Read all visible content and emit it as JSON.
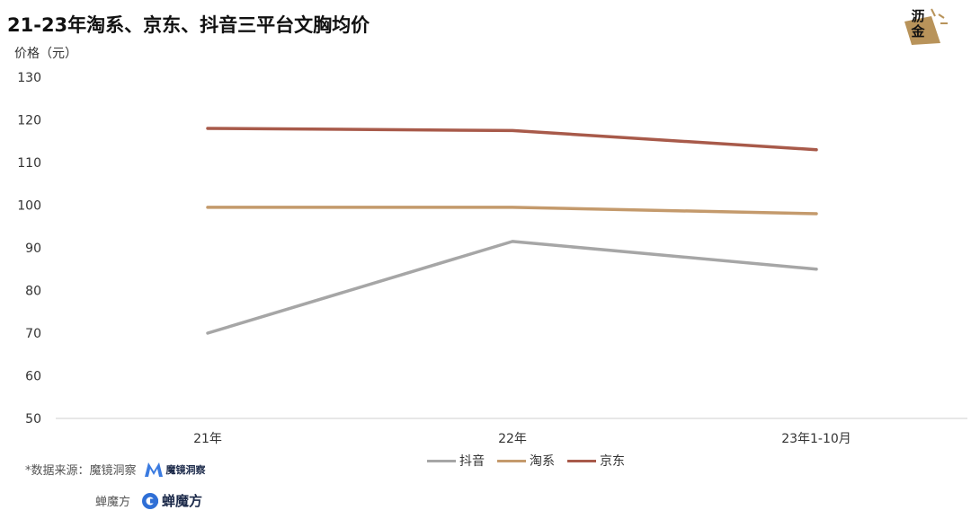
{
  "title": "21-23年淘系、京东、抖音三平台文胸均价",
  "logo": {
    "text": "沥金",
    "icon": "box-logo-icon",
    "color": "#b8935a"
  },
  "footer": {
    "source_label": "*数据来源：魔镜洞察",
    "source_brand": "魔镜洞察",
    "source_brand_icon": "m-logo-icon",
    "credit_label": "蝉魔方",
    "credit_brand": "蝉魔方",
    "credit_brand_icon": "c-logo-icon"
  },
  "chart_data": {
    "type": "line",
    "title": "21-23年淘系、京东、抖音三平台文胸均价",
    "ylabel": "价格（元）",
    "xlabel": "",
    "categories": [
      "21年",
      "22年",
      "23年1-10月"
    ],
    "ylim": [
      50,
      130
    ],
    "yticks": [
      50,
      60,
      70,
      80,
      90,
      100,
      110,
      120,
      130
    ],
    "grid": false,
    "legend_position": "bottom",
    "series": [
      {
        "name": "抖音",
        "color": "#a6a6a6",
        "values": [
          70,
          91.5,
          85
        ]
      },
      {
        "name": "淘系",
        "color": "#c49a6c",
        "values": [
          99.5,
          99.5,
          98
        ]
      },
      {
        "name": "京东",
        "color": "#a85a4a",
        "values": [
          118,
          117.5,
          113
        ]
      }
    ]
  }
}
